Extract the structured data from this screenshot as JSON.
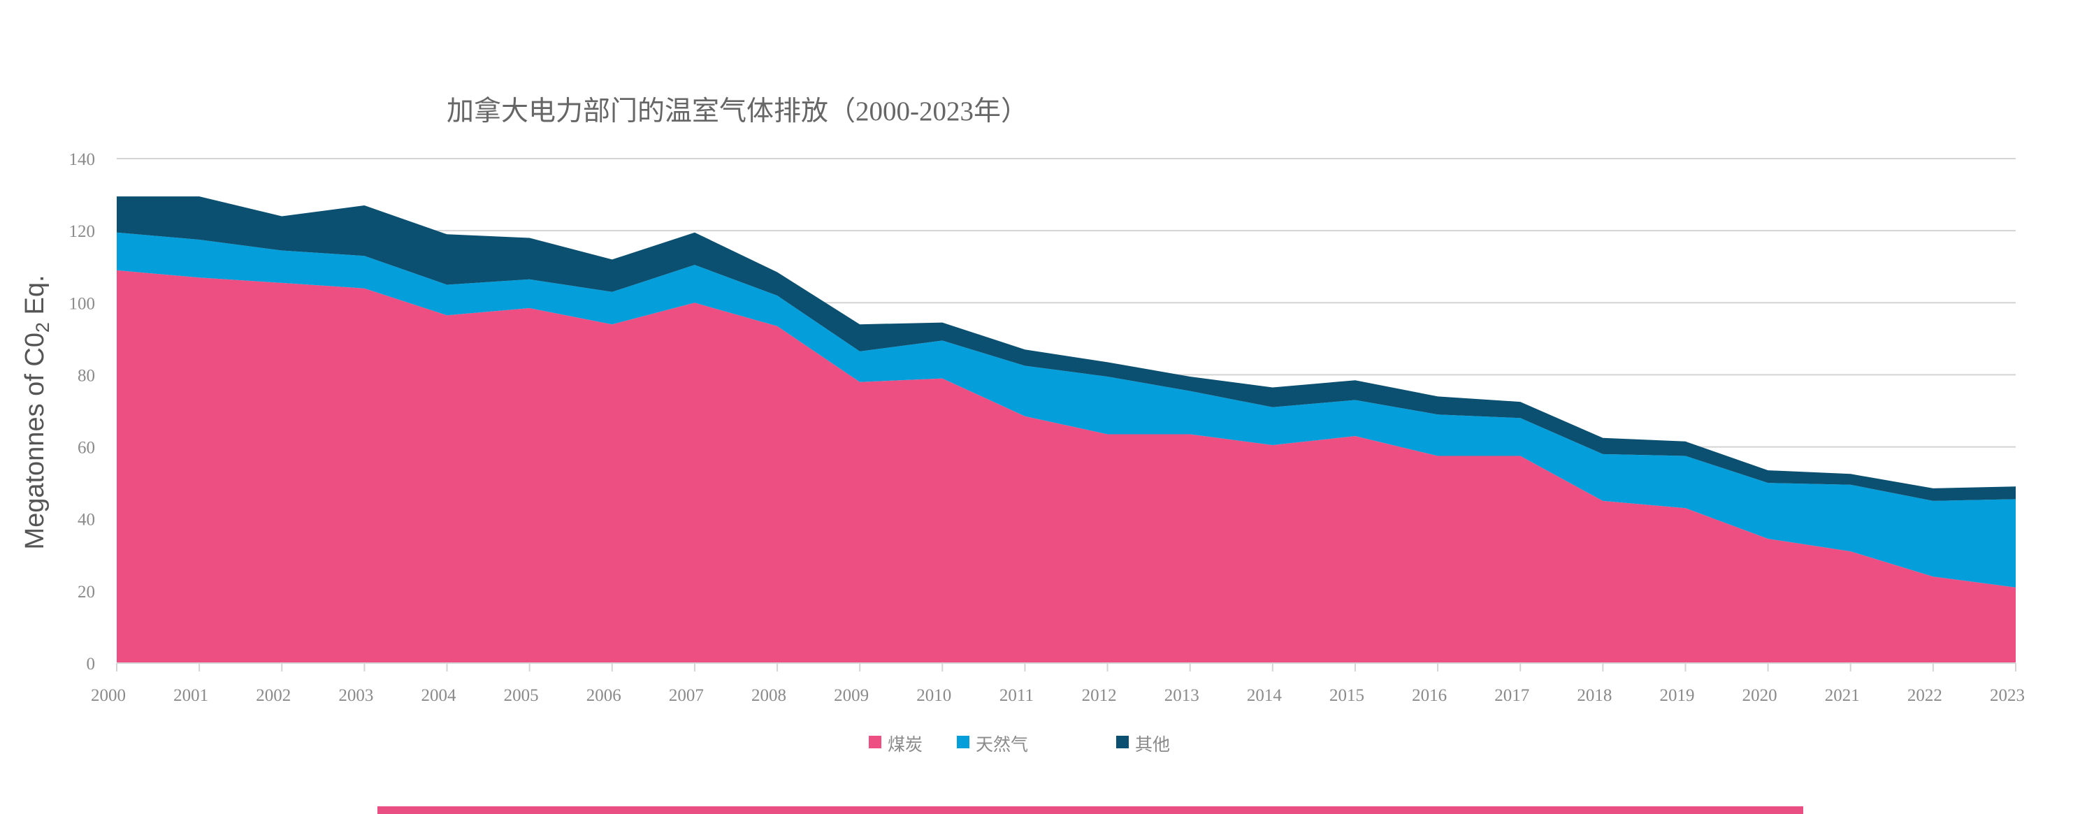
{
  "chart_data": {
    "type": "area",
    "stacked": true,
    "title": "加拿大电力部门的温室气体排放（2000-2023年）",
    "ylabel_parts": [
      "Megatonnes of C0",
      "2",
      " Eq."
    ],
    "x": [
      "2000",
      "2001",
      "2002",
      "2003",
      "2004",
      "2005",
      "2006",
      "2007",
      "2008",
      "2009",
      "2010",
      "2011",
      "2012",
      "2013",
      "2014",
      "2015",
      "2016",
      "2017",
      "2018",
      "2019",
      "2020",
      "2021",
      "2022",
      "2023"
    ],
    "ylim": [
      0,
      140
    ],
    "yticks": [
      0,
      20,
      40,
      60,
      80,
      100,
      120,
      140
    ],
    "grid": true,
    "legend_position": "bottom",
    "series": [
      {
        "name": "煤炭",
        "color": "#ee4f82",
        "values": [
          109,
          107,
          105.5,
          104,
          96.5,
          98.5,
          94,
          100,
          93.5,
          78,
          79,
          68.5,
          63.5,
          63.5,
          60.5,
          63,
          57.5,
          57.5,
          45,
          43,
          34.5,
          31,
          24,
          21
        ]
      },
      {
        "name": "天然气",
        "color": "#049fdb",
        "values": [
          10.5,
          10.5,
          9,
          9,
          8.5,
          8,
          9,
          10.5,
          8.5,
          8.5,
          10.5,
          14,
          16,
          12,
          10.5,
          10,
          11.5,
          10.5,
          13,
          14.5,
          15.5,
          18.5,
          21,
          24.5
        ]
      },
      {
        "name": "其他",
        "color": "#0b4f71",
        "values": [
          10,
          12,
          9.5,
          14,
          14,
          11.5,
          9,
          9,
          6.5,
          7.5,
          5,
          4.5,
          4,
          4,
          5.5,
          5.5,
          5,
          4.5,
          4.5,
          4,
          3.5,
          3,
          3.5,
          3.5
        ]
      }
    ]
  },
  "footer": {
    "bar_color": "#e94f82"
  }
}
